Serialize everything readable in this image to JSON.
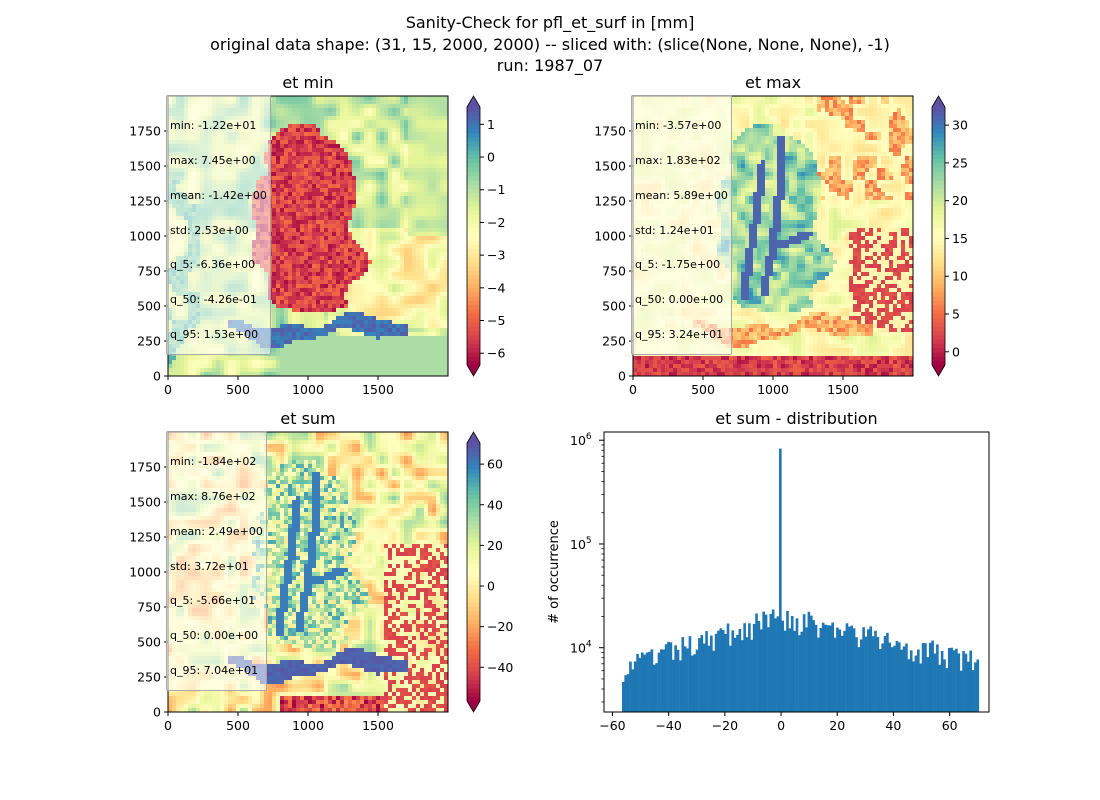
{
  "figure": {
    "title_lines": [
      "Sanity-Check for pfl_et_surf in [mm]",
      "original data shape: (31, 15, 2000, 2000) -- sliced with: (slice(None, None, None), -1)",
      "run: 1987_07"
    ]
  },
  "chart_data": [
    {
      "type": "heatmap",
      "title": "et min",
      "colormap": "Spectral",
      "xlim": [
        0,
        2000
      ],
      "ylim": [
        0,
        2000
      ],
      "xticks": [
        0,
        500,
        1000,
        1500
      ],
      "yticks": [
        0,
        250,
        500,
        750,
        1000,
        1250,
        1500,
        1750
      ],
      "colorbar": {
        "range": [
          -6.36,
          1.53
        ],
        "ticks": [
          -6,
          -5,
          -4,
          -3,
          -2,
          -1,
          0,
          1
        ],
        "extend": "both"
      },
      "stats": [
        "min: -1.22e+01",
        "max: 7.45e+00",
        "mean: -1.42e+00",
        "std: 2.53e+00",
        "q_5: -6.36e+00",
        "q_50: -4.26e-01",
        "q_95: 1.53e+00"
      ]
    },
    {
      "type": "heatmap",
      "title": "et max",
      "colormap": "Spectral",
      "xlim": [
        0,
        2000
      ],
      "ylim": [
        0,
        2000
      ],
      "xticks": [
        0,
        500,
        1000,
        1500
      ],
      "yticks": [
        0,
        250,
        500,
        750,
        1000,
        1250,
        1500,
        1750
      ],
      "colorbar": {
        "range": [
          -1.75,
          32.4
        ],
        "ticks": [
          0,
          5,
          10,
          15,
          20,
          25,
          30
        ],
        "extend": "both"
      },
      "stats": [
        "min: -3.57e+00",
        "max: 1.83e+02",
        "mean: 5.89e+00",
        "std: 1.24e+01",
        "q_5: -1.75e+00",
        "q_50: 0.00e+00",
        "q_95: 3.24e+01"
      ]
    },
    {
      "type": "heatmap",
      "title": "et sum",
      "colormap": "Spectral",
      "xlim": [
        0,
        2000
      ],
      "ylim": [
        0,
        2000
      ],
      "xticks": [
        0,
        500,
        1000,
        1500
      ],
      "yticks": [
        0,
        250,
        500,
        750,
        1000,
        1250,
        1500,
        1750
      ],
      "colorbar": {
        "range": [
          -56.6,
          70.4
        ],
        "ticks": [
          -40,
          -20,
          0,
          20,
          40,
          60
        ],
        "extend": "both"
      },
      "stats": [
        "min: -1.84e+02",
        "max: 8.76e+02",
        "mean: 2.49e+00",
        "std: 3.72e+01",
        "q_5: -5.66e+01",
        "q_50: 0.00e+00",
        "q_95: 7.04e+01"
      ]
    },
    {
      "type": "bar",
      "title": "et sum - distribution",
      "ylabel": "# of occurrence",
      "yscale": "log",
      "xlim": [
        -63,
        74
      ],
      "ylim": [
        2400,
        1200000
      ],
      "xticks": [
        -60,
        -40,
        -20,
        0,
        20,
        40,
        60
      ],
      "yticks": [
        {
          "value": 10000,
          "base": "10",
          "exp": "4"
        },
        {
          "value": 100000,
          "base": "10",
          "exp": "5"
        },
        {
          "value": 1000000,
          "base": "10",
          "exp": "6"
        }
      ],
      "bin_range": [
        -56.6,
        70.4
      ],
      "spike": {
        "x": 0,
        "value": 830000
      },
      "color": "#1f77b4"
    }
  ]
}
